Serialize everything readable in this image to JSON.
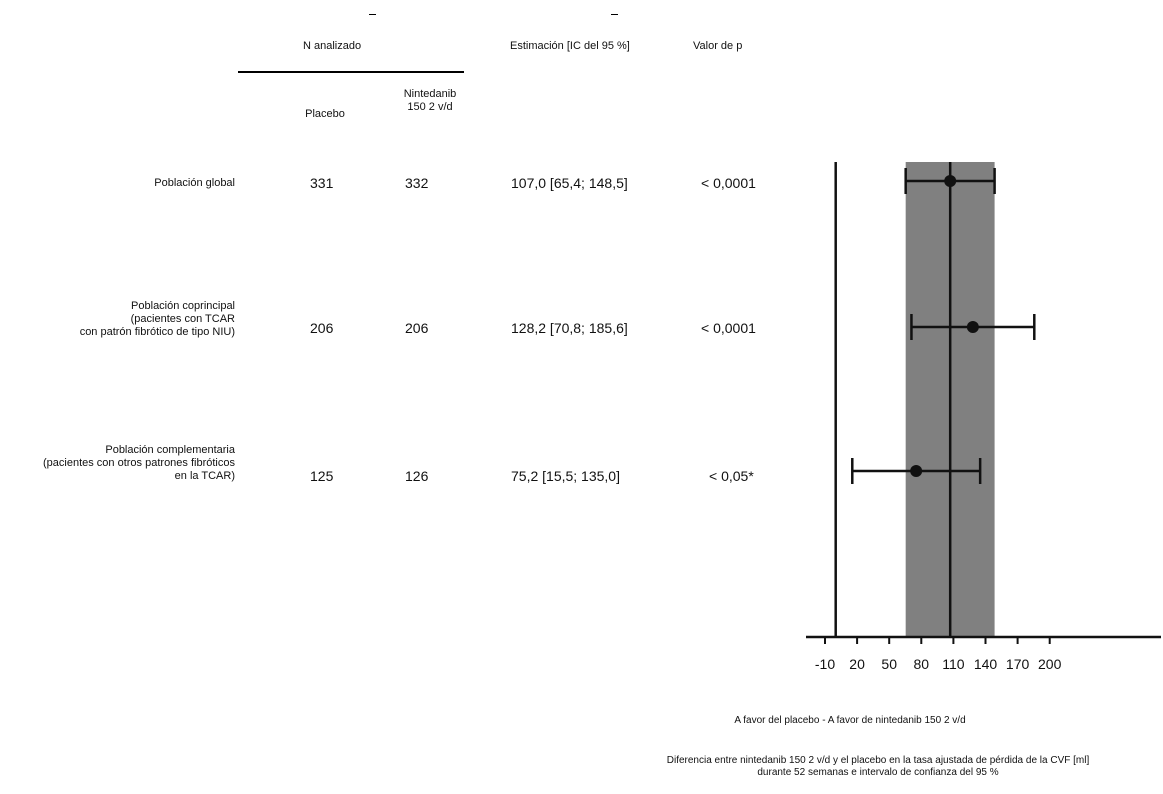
{
  "table": {
    "n_header": "N analizado",
    "estimate_header": "Estimación [IC del 95 %]",
    "pvalue_header": "Valor de p",
    "placebo_header": "Placebo",
    "nintedanib_header": [
      "Nintedanib",
      "150 2 v/d"
    ],
    "rows": [
      {
        "label_lines": [
          "Población global"
        ],
        "n_placebo": "331",
        "n_nintedanib": "332",
        "estimate": "107,0 [65,4; 148,5]",
        "p": "< 0,0001"
      },
      {
        "label_lines": [
          "Población coprincipal",
          "(pacientes con TCAR",
          "con patrón fibrótico de tipo NIU)"
        ],
        "n_placebo": "206",
        "n_nintedanib": "206",
        "estimate": "128,2 [70,8; 185,6]",
        "p": "< 0,0001"
      },
      {
        "label_lines": [
          "Población complementaria",
          "(pacientes con otros patrones fibróticos",
          "en la TCAR)"
        ],
        "n_placebo": "125",
        "n_nintedanib": "126",
        "estimate": "75,2 [15,5; 135,0]",
        "p": "< 0,05*"
      }
    ]
  },
  "chart_data": {
    "type": "forest",
    "x_ticks": [
      -10,
      20,
      50,
      80,
      110,
      140,
      170,
      200
    ],
    "x_tick_labels": [
      "-10",
      "20",
      "50",
      "80",
      "110",
      "140",
      "170",
      "200"
    ],
    "xlim": [
      -10,
      200
    ],
    "reference_line": 0,
    "overall_estimate_line": 107.0,
    "overall_ci_band": [
      65.4,
      148.5
    ],
    "points": [
      {
        "estimate": 107.0,
        "low": 65.4,
        "high": 148.5
      },
      {
        "estimate": 128.2,
        "low": 70.8,
        "high": 185.6
      },
      {
        "estimate": 75.2,
        "low": 15.5,
        "high": 135.0
      }
    ],
    "xlabel": "A favor del placebo - A favor de nintedanib 150 2 v/d",
    "caption_lines": [
      "Diferencia entre nintedanib 150 2 v/d y el placebo en la tasa ajustada de pérdida de la CVF [ml]",
      "durante 52 semanas e intervalo de confianza del 95 %"
    ],
    "colors": {
      "band": "#808080",
      "line": "#111111"
    }
  }
}
